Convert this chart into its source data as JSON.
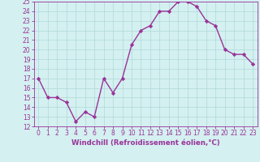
{
  "x": [
    0,
    1,
    2,
    3,
    4,
    5,
    6,
    7,
    8,
    9,
    10,
    11,
    12,
    13,
    14,
    15,
    16,
    17,
    18,
    19,
    20,
    21,
    22,
    23
  ],
  "y": [
    17,
    15,
    15,
    14.5,
    12.5,
    13.5,
    13,
    17,
    15.5,
    17,
    20.5,
    22,
    22.5,
    24,
    24,
    25,
    25,
    24.5,
    23,
    22.5,
    20,
    19.5,
    19.5,
    18.5
  ],
  "line_color": "#993399",
  "marker": "D",
  "marker_size": 2.2,
  "bg_color": "#d4f0f0",
  "grid_color": "#b0d8d8",
  "xlabel": "Windchill (Refroidissement éolien,°C)",
  "xlabel_color": "#993399",
  "tick_color": "#993399",
  "ylim": [
    12,
    25
  ],
  "xlim": [
    -0.5,
    23.5
  ],
  "yticks": [
    12,
    13,
    14,
    15,
    16,
    17,
    18,
    19,
    20,
    21,
    22,
    23,
    24,
    25
  ],
  "xticks": [
    0,
    1,
    2,
    3,
    4,
    5,
    6,
    7,
    8,
    9,
    10,
    11,
    12,
    13,
    14,
    15,
    16,
    17,
    18,
    19,
    20,
    21,
    22,
    23
  ],
  "linewidth": 1.0,
  "tick_fontsize": 5.5,
  "xlabel_fontsize": 6.2
}
